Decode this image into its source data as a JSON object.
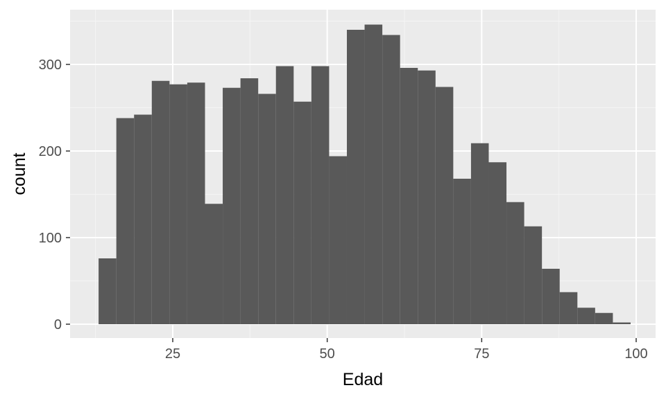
{
  "chart_data": {
    "type": "bar",
    "subtype": "histogram",
    "title": "",
    "xlabel": "Edad",
    "ylabel": "count",
    "xlim": [
      10,
      100
    ],
    "ylim": [
      0,
      350
    ],
    "x_ticks": [
      25,
      50,
      75,
      100
    ],
    "y_ticks": [
      0,
      100,
      200,
      300
    ],
    "bin_width": 2.87,
    "bin_starts": [
      13.0,
      15.87,
      18.74,
      21.61,
      24.48,
      27.35,
      30.22,
      33.09,
      35.96,
      38.83,
      41.7,
      44.57,
      47.44,
      50.31,
      53.18,
      56.05,
      58.92,
      61.79,
      64.66,
      67.53,
      70.4,
      73.27,
      76.14,
      79.01,
      81.88,
      84.75,
      87.62,
      90.49,
      93.36,
      96.23
    ],
    "values": [
      76,
      238,
      242,
      281,
      277,
      279,
      139,
      273,
      284,
      266,
      298,
      257,
      298,
      194,
      340,
      346,
      334,
      296,
      293,
      274,
      168,
      209,
      187,
      141,
      113,
      64,
      37,
      19,
      13,
      2
    ],
    "grid": true,
    "legend": "none",
    "colors": {
      "bar_fill": "#595959",
      "panel_background": "#ebebeb",
      "grid_major": "#ffffff",
      "grid_minor": "#f5f5f5",
      "tick_text": "#4d4d4d",
      "axis_title": "#000000"
    }
  }
}
